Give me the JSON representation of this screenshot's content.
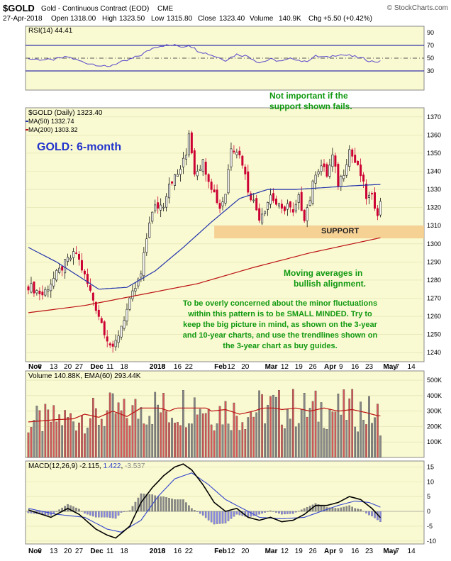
{
  "header": {
    "symbol": "$GOLD",
    "description": "Gold - Continuous Contract (EOD)",
    "exchange": "CME",
    "watermark": "© StockCharts.com",
    "date": "27-Apr-2018",
    "open_label": "Open",
    "open": "1318.00",
    "high_label": "High",
    "high": "1323.50",
    "low_label": "Low",
    "low": "1315.80",
    "close_label": "Close",
    "close": "1323.40",
    "volume_label": "Volume",
    "volume": "140.9K",
    "chg_label": "Chg",
    "chg": "+5.50 (+0.42%)"
  },
  "colors": {
    "panel_bg": "#fafad2",
    "up": "#ffffff",
    "down": "#cc0033",
    "ma50": "#2233aa",
    "ma200": "#bb1111",
    "annotation_green": "#119911",
    "title_blue": "#2233cc",
    "support_zone": "#f5c98a",
    "volume_up": "#888888",
    "volume_down": "#d45a5a",
    "rsi_line": "#5544cc",
    "macd_line": "#000000",
    "signal_line": "#3344cc",
    "hist_pos": "#888888",
    "hist_neg": "#8888dd"
  },
  "x_axis": {
    "labels": [
      {
        "text": "Nov",
        "bold": true,
        "i": 0
      },
      {
        "text": "6",
        "bold": false,
        "i": 4
      },
      {
        "text": "13",
        "bold": false,
        "i": 9
      },
      {
        "text": "20",
        "bold": false,
        "i": 14
      },
      {
        "text": "27",
        "bold": false,
        "i": 18
      },
      {
        "text": "Dec",
        "bold": true,
        "i": 22
      },
      {
        "text": "11",
        "bold": false,
        "i": 29
      },
      {
        "text": "18",
        "bold": false,
        "i": 34
      },
      {
        "text": "2018",
        "bold": true,
        "i": 43
      },
      {
        "text": "8",
        "bold": false,
        "i": 48
      },
      {
        "text": "16",
        "bold": false,
        "i": 53
      },
      {
        "text": "22",
        "bold": false,
        "i": 57
      },
      {
        "text": "Feb",
        "bold": true,
        "i": 66
      },
      {
        "text": "12",
        "bold": false,
        "i": 72
      },
      {
        "text": "20",
        "bold": false,
        "i": 77
      },
      {
        "text": "Mar",
        "bold": true,
        "i": 84
      },
      {
        "text": "12",
        "bold": false,
        "i": 91
      },
      {
        "text": "19",
        "bold": false,
        "i": 96
      },
      {
        "text": "26",
        "bold": false,
        "i": 101
      },
      {
        "text": "Apr",
        "bold": true,
        "i": 105
      },
      {
        "text": "9",
        "bold": false,
        "i": 111
      },
      {
        "text": "16",
        "bold": false,
        "i": 116
      },
      {
        "text": "23",
        "bold": false,
        "i": 121
      },
      {
        "text": "May",
        "bold": true,
        "i": 126
      },
      {
        "text": "7",
        "bold": false,
        "i": 131
      },
      {
        "text": "14",
        "bold": false,
        "i": 136
      }
    ]
  },
  "rsi_panel": {
    "label": "RSI(14) 44.41",
    "ticks": [
      90,
      70,
      50,
      30
    ],
    "overbought": 70,
    "midline": 50,
    "oversold": 30
  },
  "price_panel": {
    "legend_main": "$GOLD (Daily) 1323.40",
    "legend_ma50": "MA(50) 1332.74",
    "legend_ma200": "MA(200) 1303.32",
    "ticks": [
      1370,
      1360,
      1350,
      1340,
      1330,
      1320,
      1310,
      1300,
      1290,
      1280,
      1270,
      1260,
      1250,
      1240
    ],
    "title": "GOLD: 6-month",
    "note_top_1": "Not important if the",
    "note_top_2": "support shown fails.",
    "support_label": "SUPPORT",
    "note_ma_1": "Moving averages in",
    "note_ma_2": "bullish alignment.",
    "note_main_1": "To be overly concerned about the minor fluctuations",
    "note_main_2": "within this pattern is to be SMALL MINDED. Try to",
    "note_main_3": "keep the big picture in mind, as shown on the 3-year",
    "note_main_4": "and 10-year charts, and use the trendlines shown on",
    "note_main_5": "the 3-year chart as buy guides."
  },
  "volume_panel": {
    "label": "Volume 140.88K, EMA(60) 293.44K",
    "ticks": [
      "500K",
      "400K",
      "300K",
      "200K",
      "100K"
    ]
  },
  "macd_panel": {
    "label_prefix": "MACD(12,26,9) ",
    "macd_value": "-2.115",
    "signal_value": "1.422",
    "hist_value": "-3.537",
    "ticks": [
      "15",
      "10",
      "5",
      "0",
      "-5",
      "-10"
    ]
  },
  "chart_data": {
    "type": "line",
    "symbol": "$GOLD",
    "period": "Daily, Oct 2017 - Apr 2018",
    "anchors_close": [
      [
        0,
        1277
      ],
      [
        5,
        1272
      ],
      [
        10,
        1283
      ],
      [
        14,
        1291
      ],
      [
        17,
        1295
      ],
      [
        20,
        1282
      ],
      [
        24,
        1265
      ],
      [
        28,
        1248
      ],
      [
        30,
        1241
      ],
      [
        33,
        1255
      ],
      [
        37,
        1272
      ],
      [
        40,
        1283
      ],
      [
        43,
        1313
      ],
      [
        45,
        1320
      ],
      [
        48,
        1322
      ],
      [
        50,
        1334
      ],
      [
        53,
        1338
      ],
      [
        56,
        1349
      ],
      [
        57,
        1362
      ],
      [
        59,
        1340
      ],
      [
        62,
        1345
      ],
      [
        65,
        1332
      ],
      [
        68,
        1320
      ],
      [
        70,
        1328
      ],
      [
        72,
        1354
      ],
      [
        74,
        1352
      ],
      [
        76,
        1345
      ],
      [
        78,
        1330
      ],
      [
        80,
        1323
      ],
      [
        82,
        1315
      ],
      [
        84,
        1320
      ],
      [
        86,
        1327
      ],
      [
        88,
        1322
      ],
      [
        90,
        1318
      ],
      [
        92,
        1322
      ],
      [
        94,
        1316
      ],
      [
        96,
        1325
      ],
      [
        98,
        1315
      ],
      [
        100,
        1325
      ],
      [
        102,
        1340
      ],
      [
        104,
        1343
      ],
      [
        106,
        1338
      ],
      [
        108,
        1348
      ],
      [
        110,
        1333
      ],
      [
        112,
        1340
      ],
      [
        114,
        1352
      ],
      [
        116,
        1345
      ],
      [
        118,
        1338
      ],
      [
        120,
        1326
      ],
      [
        122,
        1325
      ],
      [
        124,
        1318
      ],
      [
        125,
        1323.4
      ]
    ],
    "anchors_ma50": [
      [
        0,
        1298
      ],
      [
        10,
        1290
      ],
      [
        20,
        1280
      ],
      [
        25,
        1275
      ],
      [
        35,
        1276
      ],
      [
        45,
        1285
      ],
      [
        55,
        1298
      ],
      [
        65,
        1312
      ],
      [
        75,
        1325
      ],
      [
        85,
        1330
      ],
      [
        95,
        1330
      ],
      [
        105,
        1331
      ],
      [
        115,
        1332
      ],
      [
        125,
        1332.74
      ]
    ],
    "anchors_ma200": [
      [
        0,
        1262
      ],
      [
        20,
        1266
      ],
      [
        40,
        1272
      ],
      [
        60,
        1278
      ],
      [
        80,
        1287
      ],
      [
        100,
        1295
      ],
      [
        115,
        1300
      ],
      [
        125,
        1303.32
      ]
    ],
    "anchors_rsi": [
      [
        0,
        49
      ],
      [
        8,
        47
      ],
      [
        14,
        52
      ],
      [
        20,
        43
      ],
      [
        24,
        40
      ],
      [
        28,
        36
      ],
      [
        30,
        40
      ],
      [
        35,
        46
      ],
      [
        40,
        55
      ],
      [
        45,
        68
      ],
      [
        48,
        70
      ],
      [
        52,
        70
      ],
      [
        55,
        68
      ],
      [
        57,
        71
      ],
      [
        60,
        62
      ],
      [
        65,
        55
      ],
      [
        70,
        47
      ],
      [
        74,
        56
      ],
      [
        78,
        53
      ],
      [
        82,
        43
      ],
      [
        86,
        48
      ],
      [
        90,
        45
      ],
      [
        94,
        50
      ],
      [
        98,
        44
      ],
      [
        102,
        53
      ],
      [
        106,
        51
      ],
      [
        110,
        56
      ],
      [
        114,
        54
      ],
      [
        118,
        50
      ],
      [
        122,
        45
      ],
      [
        125,
        44.41
      ]
    ],
    "anchors_volume": [
      [
        0,
        230
      ],
      [
        10,
        245
      ],
      [
        16,
        250
      ],
      [
        20,
        280
      ],
      [
        25,
        260
      ],
      [
        30,
        300
      ],
      [
        35,
        265
      ],
      [
        40,
        320
      ],
      [
        45,
        330
      ],
      [
        50,
        300
      ],
      [
        55,
        340
      ],
      [
        60,
        360
      ],
      [
        65,
        300
      ],
      [
        70,
        310
      ],
      [
        75,
        280
      ],
      [
        80,
        300
      ],
      [
        85,
        330
      ],
      [
        90,
        310
      ],
      [
        95,
        320
      ],
      [
        100,
        300
      ],
      [
        105,
        320
      ],
      [
        110,
        300
      ],
      [
        115,
        310
      ],
      [
        120,
        290
      ],
      [
        124,
        270
      ],
      [
        125,
        140.88
      ]
    ],
    "anchors_macd": [
      [
        0,
        0.5
      ],
      [
        8,
        -2
      ],
      [
        14,
        1
      ],
      [
        18,
        -1
      ],
      [
        24,
        -6
      ],
      [
        28,
        -8
      ],
      [
        31,
        -9
      ],
      [
        36,
        -5
      ],
      [
        40,
        3
      ],
      [
        44,
        8
      ],
      [
        48,
        12
      ],
      [
        52,
        15
      ],
      [
        55,
        16
      ],
      [
        58,
        14
      ],
      [
        62,
        9
      ],
      [
        66,
        3
      ],
      [
        70,
        0
      ],
      [
        74,
        1
      ],
      [
        78,
        -2
      ],
      [
        82,
        -3
      ],
      [
        86,
        -2
      ],
      [
        90,
        -3.5
      ],
      [
        94,
        -3
      ],
      [
        98,
        -1
      ],
      [
        102,
        2
      ],
      [
        106,
        2
      ],
      [
        110,
        3
      ],
      [
        114,
        5
      ],
      [
        118,
        4
      ],
      [
        122,
        1
      ],
      [
        125,
        -2.115
      ]
    ],
    "anchors_signal": [
      [
        0,
        1
      ],
      [
        10,
        -1
      ],
      [
        20,
        -2
      ],
      [
        28,
        -6
      ],
      [
        33,
        -7
      ],
      [
        40,
        -3
      ],
      [
        46,
        5
      ],
      [
        52,
        11
      ],
      [
        58,
        13
      ],
      [
        64,
        9
      ],
      [
        70,
        4
      ],
      [
        76,
        1
      ],
      [
        82,
        -2
      ],
      [
        90,
        -2.5
      ],
      [
        98,
        -2
      ],
      [
        104,
        0
      ],
      [
        110,
        2
      ],
      [
        116,
        3.5
      ],
      [
        121,
        3
      ],
      [
        125,
        1.422
      ]
    ],
    "price_range": [
      1235,
      1375
    ],
    "rsi_range": [
      0,
      100
    ],
    "volume_range": [
      0,
      560
    ],
    "macd_range": [
      -11,
      17
    ],
    "sessions": 126,
    "support_zone": [
      1303,
      1310
    ],
    "last_close": 1323.4,
    "ma50_last": 1332.74,
    "ma200_last": 1303.32,
    "rsi_last": 44.41,
    "volume_last_k": 140.88,
    "volume_ema60_k": 293.44,
    "macd_last": -2.115,
    "signal_last": 1.422,
    "histogram_last": -3.537
  }
}
